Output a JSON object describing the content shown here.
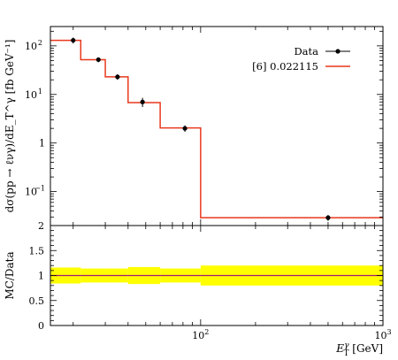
{
  "chart_data": {
    "type": "line",
    "xscale": "log",
    "xlim": [
      15,
      1000
    ],
    "xlabel": {
      "main": "E",
      "sup": "γ",
      "sub": "T",
      "unit": " [GeV]"
    },
    "x_ticks": [
      {
        "value": 100,
        "base": "10",
        "exp": "2"
      },
      {
        "value": 1000,
        "base": "10",
        "exp": "3"
      }
    ],
    "grid": false,
    "top": {
      "yscale": "log",
      "ylim": [
        0.02,
        250
      ],
      "ylabel": "dσ(pp → ℓνγ)/dE_T^γ [fb GeV⁻¹]",
      "y_ticks": [
        {
          "value": 100,
          "base": "10",
          "exp": "2"
        },
        {
          "value": 10,
          "base": "10",
          "exp": "1"
        },
        {
          "value": 1,
          "base": "1",
          "exp": ""
        },
        {
          "value": 0.1,
          "base": "10",
          "exp": "−1"
        }
      ],
      "legend_position": "top-right",
      "series": [
        {
          "name": "Data",
          "kind": "points",
          "color": "#000000",
          "x": [
            20,
            27.5,
            35,
            48,
            82,
            500
          ],
          "y": [
            130,
            52,
            23,
            7,
            2,
            0.029
          ],
          "yerr_low": [
            18,
            6,
            3,
            1.5,
            0.3,
            0.004
          ],
          "yerr_high": [
            18,
            6,
            3,
            1.5,
            0.3,
            0.004
          ]
        },
        {
          "name": "[6] 0.022115",
          "kind": "step",
          "color": "#e8391c",
          "bin_edges": [
            15,
            22,
            30,
            40,
            60,
            100,
            1000
          ],
          "values": [
            130,
            52,
            23,
            6.8,
            2.05,
            0.029
          ]
        }
      ]
    },
    "ratio": {
      "ylabel": "MC/Data",
      "ylim": [
        0,
        2
      ],
      "y_ticks": [
        "0",
        "0.5",
        "1",
        "1.5",
        "2"
      ],
      "band_color": "#ffff00",
      "line_color": "#a31a7a",
      "bin_edges": [
        15,
        22,
        30,
        40,
        60,
        100,
        1000
      ],
      "values": [
        1,
        1,
        1,
        1,
        1,
        1
      ],
      "band_low": [
        0.84,
        0.86,
        0.86,
        0.83,
        0.86,
        0.8
      ],
      "band_high": [
        1.16,
        1.14,
        1.14,
        1.17,
        1.14,
        1.2
      ]
    }
  }
}
